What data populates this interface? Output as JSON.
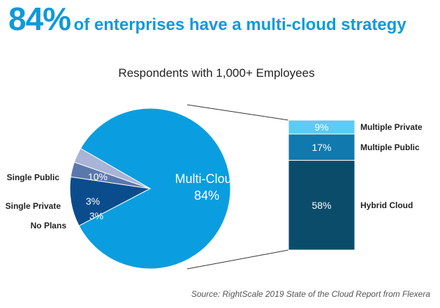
{
  "headline": {
    "percent": "84%",
    "text": "of enterprises have a multi-cloud strategy"
  },
  "source": "Source: RightScale 2019 State of the Cloud Report from Flexera",
  "colors": {
    "headline": "#0f9ad8",
    "multi_cloud": "#0a9ee0",
    "single_public": "#0b4d8c",
    "single_private": "#5b78ae",
    "no_plans": "#a9b4d6",
    "multiple_private": "#5ccbf5",
    "multiple_public": "#1179ad",
    "hybrid_cloud": "#0b4c6b"
  },
  "chart_data": [
    {
      "type": "pie",
      "title": "Respondents with 1,000+ Employees",
      "slices": [
        {
          "label": "Multi-Cloud",
          "value": 84,
          "value_label": "84%",
          "color": "#0a9ee0"
        },
        {
          "label": "Single Public",
          "value": 10,
          "value_label": "10%",
          "color": "#0b4d8c"
        },
        {
          "label": "Single Private",
          "value": 3,
          "value_label": "3%",
          "color": "#5b78ae"
        },
        {
          "label": "No Plans",
          "value": 3,
          "value_label": "3%",
          "color": "#a9b4d6"
        }
      ]
    },
    {
      "type": "bar",
      "stacked": true,
      "breakdown_of": "Multi-Cloud",
      "segments": [
        {
          "label": "Multiple Private",
          "value": 9,
          "value_label": "9%",
          "color": "#5ccbf5"
        },
        {
          "label": "Multiple Public",
          "value": 17,
          "value_label": "17%",
          "color": "#1179ad"
        },
        {
          "label": "Hybrid Cloud",
          "value": 58,
          "value_label": "58%",
          "color": "#0b4c6b"
        }
      ]
    }
  ]
}
